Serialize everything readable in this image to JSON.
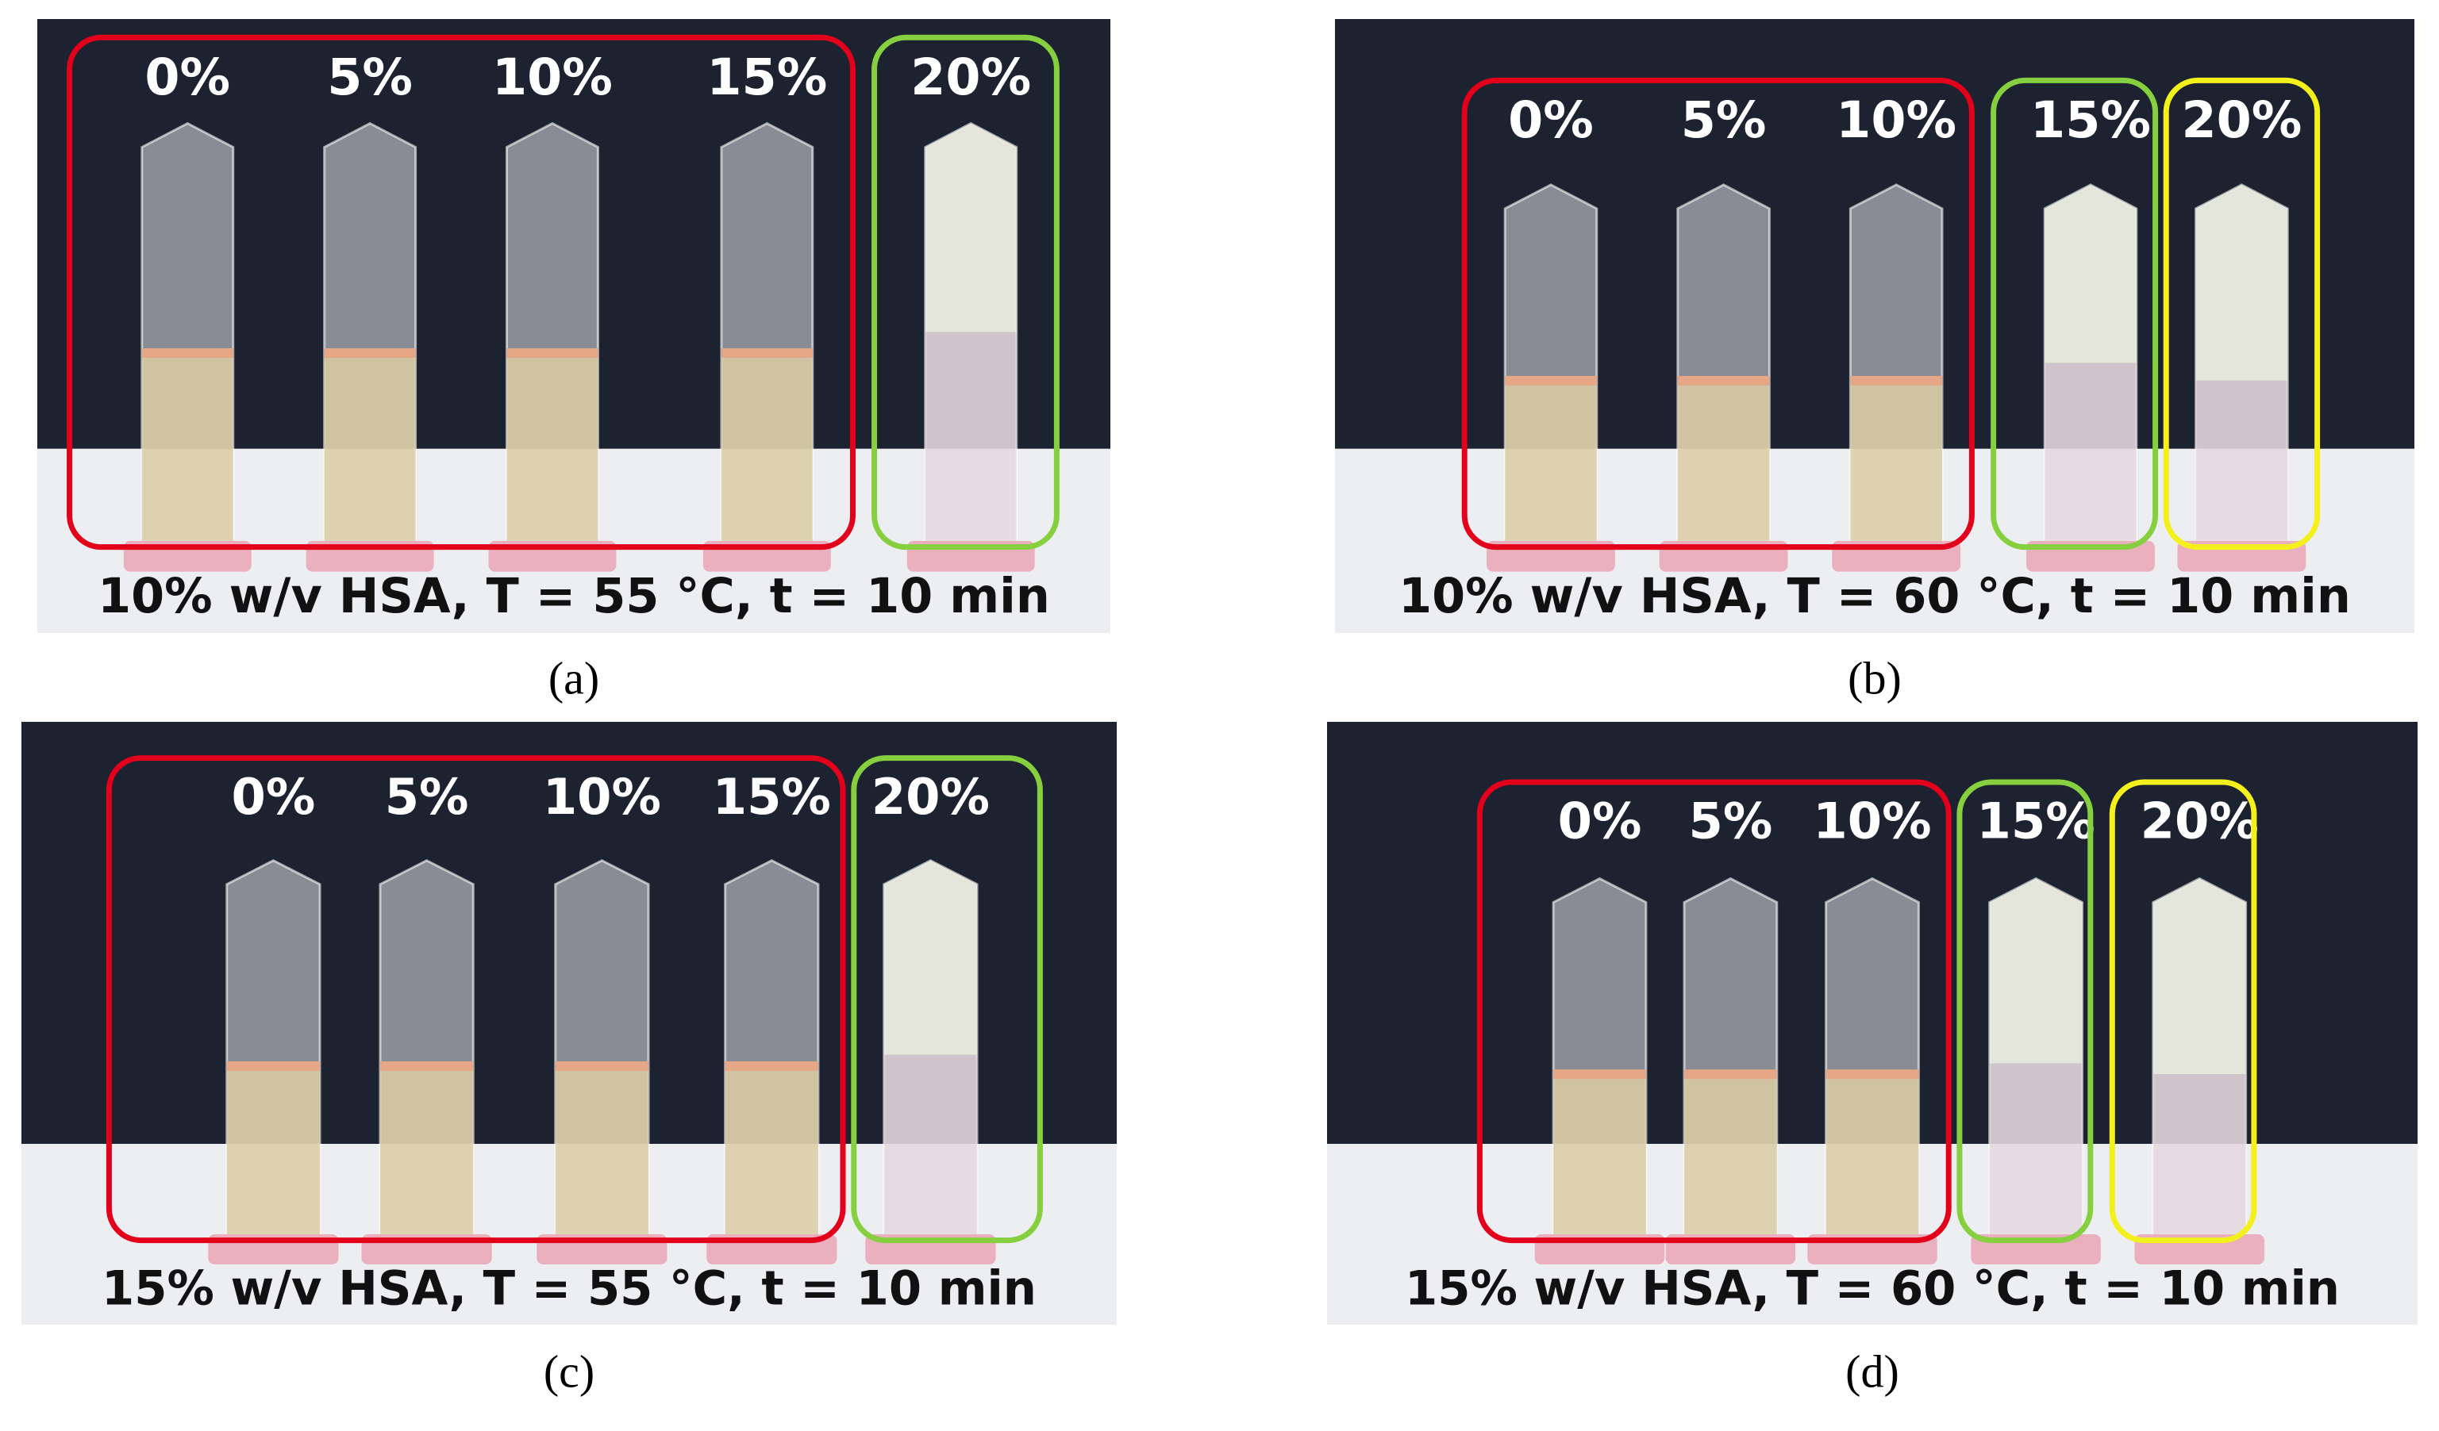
{
  "panels": [
    {
      "tag": "(a)",
      "labels": [
        "0%",
        "5%",
        "10%",
        "15%",
        "20%"
      ],
      "caption": "10% w/v HSA, T = 55 °C, t = 10 min"
    },
    {
      "tag": "(b)",
      "labels": [
        "0%",
        "5%",
        "10%",
        "15%",
        "20%"
      ],
      "caption": "10% w/v HSA, T = 60 °C, t = 10 min"
    },
    {
      "tag": "(c)",
      "labels": [
        "0%",
        "5%",
        "10%",
        "15%",
        "20%"
      ],
      "caption": "15% w/v HSA, T = 55 °C, t = 10 min"
    },
    {
      "tag": "(d)",
      "labels": [
        "0%",
        "5%",
        "10%",
        "15%",
        "20%"
      ],
      "caption": "15% w/v HSA, T = 60 °C, t = 10 min"
    }
  ]
}
